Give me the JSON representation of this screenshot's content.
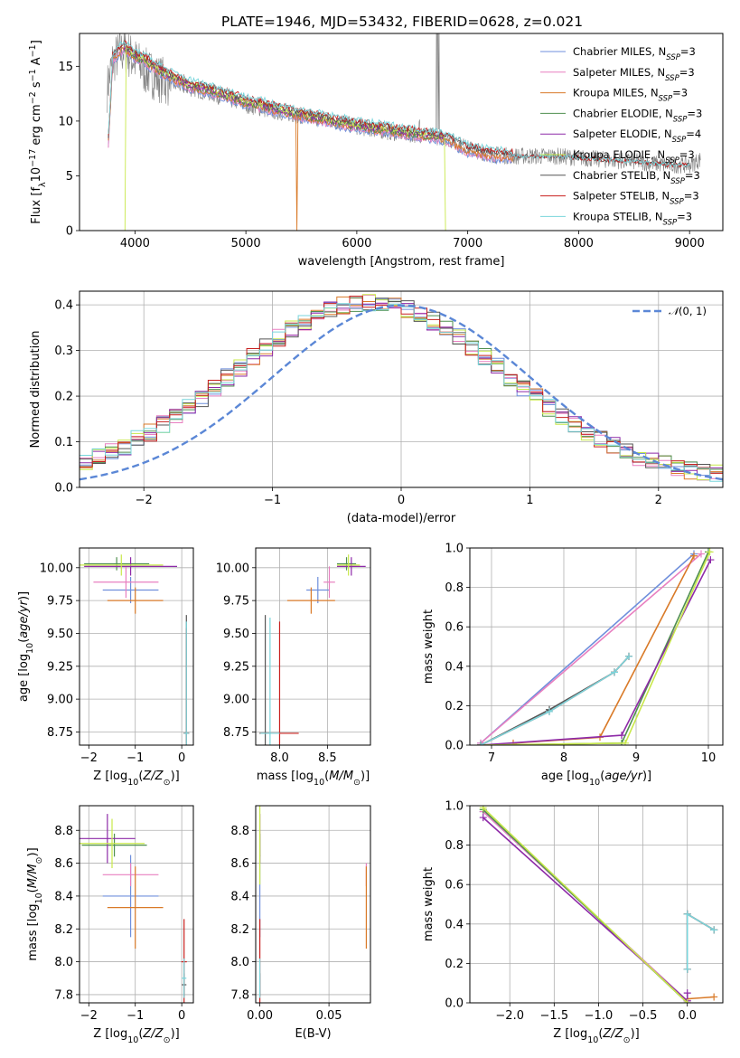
{
  "title": "PLATE=1946, MJD=53432, FIBERID=0628, z=0.021",
  "colors": {
    "chabrier_miles": "#6f8fdc",
    "salpeter_miles": "#e87fc0",
    "kroupa_miles": "#d97a28",
    "chabrier_elodie": "#4f8f4f",
    "salpeter_elodie": "#8e2aa8",
    "kroupa_elodie": "#c8e84a",
    "chabrier_stelib": "#555555",
    "salpeter_stelib": "#c8201f",
    "kroupa_stelib": "#79d6dc",
    "data": "#808080",
    "normal": "#5b87d6"
  },
  "legend": [
    {
      "key": "chabrier_miles",
      "text": "Chabrier MILES, N",
      "nssp": "3"
    },
    {
      "key": "salpeter_miles",
      "text": "Salpeter MILES, N",
      "nssp": "3"
    },
    {
      "key": "kroupa_miles",
      "text": "Kroupa MILES, N",
      "nssp": "3"
    },
    {
      "key": "chabrier_elodie",
      "text": "Chabrier ELODIE, N",
      "nssp": "3"
    },
    {
      "key": "salpeter_elodie",
      "text": "Salpeter ELODIE, N",
      "nssp": "4"
    },
    {
      "key": "kroupa_elodie",
      "text": "Kroupa ELODIE, N",
      "nssp": "3"
    },
    {
      "key": "chabrier_stelib",
      "text": "Chabrier STELIB, N",
      "nssp": "3"
    },
    {
      "key": "salpeter_stelib",
      "text": "Salpeter STELIB, N",
      "nssp": "3"
    },
    {
      "key": "kroupa_stelib",
      "text": "Kroupa STELIB, N",
      "nssp": "3"
    }
  ],
  "nssp_subscript": "SSP",
  "chart_data": [
    {
      "id": "spectrum",
      "type": "line",
      "xlabel": "wavelength [Angstrom, rest frame]",
      "ylabel": "Flux [f_λ 10^-17 erg cm^-2 s^-1 A^-1]",
      "xlim": [
        3500,
        9300
      ],
      "ylim": [
        0,
        18
      ],
      "xticks": [
        4000,
        5000,
        6000,
        7000,
        8000,
        9000
      ],
      "yticks": [
        0,
        5,
        10,
        15
      ],
      "data_trend": {
        "x": [
          3750,
          3800,
          3900,
          4000,
          4100,
          4300,
          4500,
          4700,
          5000,
          5200,
          5500,
          5800,
          6000,
          6300,
          6500,
          6800,
          7000,
          7200,
          7400,
          7800,
          8200,
          8500,
          8800,
          9000,
          9100
        ],
        "y": [
          13,
          15.5,
          16.5,
          15.5,
          14.5,
          13.5,
          13,
          12.5,
          11.5,
          11,
          10.5,
          10,
          9.5,
          9,
          8.8,
          8.5,
          7.5,
          7,
          6.8,
          6.8,
          6.5,
          6.3,
          6,
          6,
          6.5
        ]
      },
      "model_trend": {
        "x": [
          3760,
          3800,
          3900,
          4000,
          4100,
          4300,
          4500,
          4700,
          5000,
          5200,
          5500,
          5800,
          6000,
          6300,
          6500,
          6800,
          7000,
          7200,
          7400
        ],
        "y": [
          8.2,
          15.8,
          16.8,
          16,
          15.5,
          14.2,
          13.3,
          12.8,
          11.8,
          11.3,
          10.6,
          10.0,
          9.6,
          9.2,
          8.9,
          8.5,
          7.4,
          7.0,
          6.8
        ]
      },
      "data_extent": [
        3750,
        9100
      ],
      "model_extents": {
        "chabrier_miles": [
          3760,
          7420
        ],
        "salpeter_miles": [
          3760,
          7420
        ],
        "kroupa_miles": [
          3760,
          7420
        ],
        "chabrier_elodie": [
          3900,
          6800
        ],
        "salpeter_elodie": [
          3900,
          6800
        ],
        "kroupa_elodie": [
          3900,
          6800
        ],
        "chabrier_stelib": [
          3760,
          9000
        ],
        "salpeter_stelib": [
          3760,
          9000
        ],
        "kroupa_stelib": [
          3760,
          9000
        ]
      }
    },
    {
      "id": "residuals",
      "type": "line",
      "xlabel": "(data-model)/error",
      "ylabel": "Normed distribution",
      "xlim": [
        -2.5,
        2.5
      ],
      "ylim": [
        0,
        0.43
      ],
      "xticks": [
        -2,
        -1,
        0,
        1,
        2
      ],
      "yticks": [
        0.0,
        0.1,
        0.2,
        0.3,
        0.4
      ],
      "legend": "N(0,1)",
      "hist_bin_width": 0.1,
      "hist_shift": -0.25
    },
    {
      "id": "age_vs_Z",
      "type": "scatter",
      "xlabel": "Z [log10(Z/Z☉)]",
      "ylabel": "age [log10(age/yr)]",
      "xlim": [
        -2.2,
        0.25
      ],
      "ylim": [
        8.65,
        10.15
      ],
      "xticks": [
        -2,
        -1,
        0
      ],
      "yticks": [
        8.75,
        9.0,
        9.25,
        9.5,
        9.75,
        10.0
      ],
      "crosses": [
        {
          "key": "chabrier_miles",
          "x": -1.1,
          "y": 9.83,
          "xerr": 0.6,
          "yerr": 0.1
        },
        {
          "key": "salpeter_miles",
          "x": -1.2,
          "y": 9.89,
          "xerr": 0.7,
          "yerr": 0.12
        },
        {
          "key": "kroupa_miles",
          "x": -1.0,
          "y": 9.75,
          "xerr": 0.6,
          "yerr": 0.1
        },
        {
          "key": "chabrier_elodie",
          "x": -1.4,
          "y": 10.03,
          "xerr": 0.7,
          "yerr": 0.05
        },
        {
          "key": "salpeter_elodie",
          "x": -1.1,
          "y": 10.01,
          "xerr": 1.0,
          "yerr": 0.07
        },
        {
          "key": "kroupa_elodie",
          "x": -1.3,
          "y": 10.02,
          "xerr": 0.9,
          "yerr": 0.08
        },
        {
          "key": "chabrier_stelib",
          "x": 0.1,
          "y": 8.74,
          "xerr": 0.06,
          "yerr": 0.9
        },
        {
          "key": "salpeter_stelib",
          "x": 0.1,
          "y": 8.74,
          "xerr": 0.05,
          "yerr": 0.8
        },
        {
          "key": "kroupa_stelib",
          "x": 0.1,
          "y": 8.74,
          "xerr": 0.05,
          "yerr": 0.85
        }
      ]
    },
    {
      "id": "age_vs_mass",
      "type": "scatter",
      "xlabel": "mass [log10(M/M☉)]",
      "ylabel": "",
      "xlim": [
        7.75,
        8.95
      ],
      "ylim": [
        8.65,
        10.15
      ],
      "xticks": [
        8.0,
        8.5
      ],
      "yticks": [
        8.75,
        9.0,
        9.25,
        9.5,
        9.75,
        10.0
      ],
      "crosses": [
        {
          "key": "chabrier_miles",
          "x": 8.4,
          "y": 9.83,
          "xerr": 0.12,
          "yerr": 0.1
        },
        {
          "key": "salpeter_miles",
          "x": 8.52,
          "y": 9.89,
          "xerr": 0.06,
          "yerr": 0.12
        },
        {
          "key": "kroupa_miles",
          "x": 8.33,
          "y": 9.75,
          "xerr": 0.25,
          "yerr": 0.1
        },
        {
          "key": "chabrier_elodie",
          "x": 8.7,
          "y": 10.03,
          "xerr": 0.1,
          "yerr": 0.05
        },
        {
          "key": "salpeter_elodie",
          "x": 8.75,
          "y": 10.01,
          "xerr": 0.15,
          "yerr": 0.07
        },
        {
          "key": "kroupa_elodie",
          "x": 8.72,
          "y": 10.02,
          "xerr": 0.12,
          "yerr": 0.08
        },
        {
          "key": "chabrier_stelib",
          "x": 7.85,
          "y": 8.74,
          "xerr": 0.06,
          "yerr": 0.9
        },
        {
          "key": "salpeter_stelib",
          "x": 8.0,
          "y": 8.74,
          "xerr": 0.2,
          "yerr": 0.85
        },
        {
          "key": "kroupa_stelib",
          "x": 7.9,
          "y": 8.74,
          "xerr": 0.1,
          "yerr": 0.88
        }
      ]
    },
    {
      "id": "weight_vs_age",
      "type": "line",
      "xlabel": "age [log10(age/yr)]",
      "ylabel": "mass weight",
      "xlim": [
        6.7,
        10.2
      ],
      "ylim": [
        0,
        1.0
      ],
      "xticks": [
        7,
        8,
        9,
        10
      ],
      "yticks": [
        0.0,
        0.2,
        0.4,
        0.6,
        0.8,
        1.0
      ],
      "series": [
        {
          "key": "chabrier_miles",
          "x": [
            6.85,
            9.8
          ],
          "y": [
            0.01,
            0.97
          ]
        },
        {
          "key": "salpeter_miles",
          "x": [
            6.85,
            9.9
          ],
          "y": [
            0.01,
            0.97
          ]
        },
        {
          "key": "kroupa_miles",
          "x": [
            7.3,
            8.5,
            9.8
          ],
          "y": [
            0.01,
            0.04,
            0.96
          ]
        },
        {
          "key": "chabrier_elodie",
          "x": [
            6.85,
            8.8,
            10.0
          ],
          "y": [
            0.0,
            0.01,
            0.98
          ]
        },
        {
          "key": "salpeter_elodie",
          "x": [
            6.85,
            8.8,
            10.03
          ],
          "y": [
            0.0,
            0.05,
            0.94
          ]
        },
        {
          "key": "kroupa_elodie",
          "x": [
            6.85,
            8.85,
            10.02
          ],
          "y": [
            0.0,
            0.01,
            0.98
          ]
        },
        {
          "key": "chabrier_stelib",
          "x": [
            6.85,
            7.8,
            8.7,
            8.9
          ],
          "y": [
            0.0,
            0.18,
            0.37,
            0.45
          ]
        },
        {
          "key": "salpeter_stelib",
          "x": [
            6.85,
            7.8,
            8.7,
            8.9
          ],
          "y": [
            0.0,
            0.17,
            0.37,
            0.45
          ]
        },
        {
          "key": "kroupa_stelib",
          "x": [
            6.85,
            7.8,
            8.7,
            8.9
          ],
          "y": [
            0.0,
            0.17,
            0.37,
            0.45
          ]
        }
      ]
    },
    {
      "id": "mass_vs_Z",
      "type": "scatter",
      "xlabel": "Z [log10(Z/Z☉)]",
      "ylabel": "mass [log10(M/M☉)]",
      "xlim": [
        -2.2,
        0.25
      ],
      "ylim": [
        7.75,
        8.95
      ],
      "xticks": [
        -2,
        -1,
        0
      ],
      "yticks": [
        7.8,
        8.0,
        8.2,
        8.4,
        8.6,
        8.8
      ],
      "crosses": [
        {
          "key": "chabrier_miles",
          "x": -1.1,
          "y": 8.4,
          "xerr": 0.6,
          "yerr": 0.25
        },
        {
          "key": "salpeter_miles",
          "x": -1.1,
          "y": 8.53,
          "xerr": 0.6,
          "yerr": 0.07
        },
        {
          "key": "kroupa_miles",
          "x": -1.0,
          "y": 8.33,
          "xerr": 0.6,
          "yerr": 0.25
        },
        {
          "key": "chabrier_elodie",
          "x": -1.45,
          "y": 8.71,
          "xerr": 0.7,
          "yerr": 0.07
        },
        {
          "key": "salpeter_elodie",
          "x": -1.6,
          "y": 8.75,
          "xerr": 0.6,
          "yerr": 0.15
        },
        {
          "key": "kroupa_elodie",
          "x": -1.5,
          "y": 8.72,
          "xerr": 0.7,
          "yerr": 0.15
        },
        {
          "key": "chabrier_stelib",
          "x": 0.05,
          "y": 7.86,
          "xerr": 0.05,
          "yerr": 0.07
        },
        {
          "key": "salpeter_stelib",
          "x": 0.05,
          "y": 8.0,
          "xerr": 0.06,
          "yerr": 0.26
        },
        {
          "key": "kroupa_stelib",
          "x": 0.05,
          "y": 7.9,
          "xerr": 0.05,
          "yerr": 0.12
        }
      ]
    },
    {
      "id": "mass_vs_ebv",
      "type": "scatter",
      "xlabel": "E(B-V)",
      "ylabel": "",
      "xlim": [
        -0.003,
        0.08
      ],
      "ylim": [
        7.75,
        8.95
      ],
      "xticks": [
        0.0,
        0.05
      ],
      "yticks": [
        7.8,
        8.0,
        8.2,
        8.4,
        8.6,
        8.8
      ],
      "crosses": [
        {
          "key": "chabrier_miles",
          "x": 0.0,
          "y": 8.4,
          "xerr": 0,
          "yerr": 0.25
        },
        {
          "key": "salpeter_miles",
          "x": 0.077,
          "y": 8.53,
          "xerr": 0,
          "yerr": 0.07
        },
        {
          "key": "kroupa_miles",
          "x": 0.077,
          "y": 8.33,
          "xerr": 0,
          "yerr": 0.25
        },
        {
          "key": "chabrier_elodie",
          "x": 0.0,
          "y": 8.71,
          "xerr": 0,
          "yerr": 0.07
        },
        {
          "key": "salpeter_elodie",
          "x": 0.0,
          "y": 8.75,
          "xerr": 0,
          "yerr": 0.15
        },
        {
          "key": "kroupa_elodie",
          "x": 0.0,
          "y": 8.72,
          "xerr": 0,
          "yerr": 0.25
        },
        {
          "key": "chabrier_stelib",
          "x": 0.0,
          "y": 7.86,
          "xerr": 0,
          "yerr": 0.07
        },
        {
          "key": "salpeter_stelib",
          "x": 0.0,
          "y": 8.0,
          "xerr": 0,
          "yerr": 0.26
        },
        {
          "key": "kroupa_stelib",
          "x": 0.0,
          "y": 7.9,
          "xerr": 0,
          "yerr": 0.12
        }
      ]
    },
    {
      "id": "weight_vs_Z",
      "type": "line",
      "xlabel": "Z [log10(Z/Z☉)]",
      "ylabel": "mass weight",
      "xlim": [
        -2.45,
        0.4
      ],
      "ylim": [
        0,
        1.0
      ],
      "xticks": [
        -2.0,
        -1.5,
        -1.0,
        -0.5,
        0.0
      ],
      "yticks": [
        0.0,
        0.2,
        0.4,
        0.6,
        0.8,
        1.0
      ],
      "series": [
        {
          "key": "chabrier_miles",
          "x": [
            -2.3,
            0.0
          ],
          "y": [
            0.97,
            0.01
          ]
        },
        {
          "key": "salpeter_miles",
          "x": [
            -2.3,
            0.0
          ],
          "y": [
            0.97,
            0.01
          ]
        },
        {
          "key": "kroupa_miles",
          "x": [
            0.0,
            0.3
          ],
          "y": [
            0.02,
            0.03
          ]
        },
        {
          "key": "chabrier_elodie",
          "x": [
            -2.3,
            0.0
          ],
          "y": [
            0.98,
            0.0
          ]
        },
        {
          "key": "salpeter_elodie",
          "x": [
            -2.3,
            0.0,
            0.0
          ],
          "y": [
            0.94,
            0.01,
            0.05
          ]
        },
        {
          "key": "kroupa_elodie",
          "x": [
            -2.3,
            0.0
          ],
          "y": [
            0.99,
            0.0
          ]
        },
        {
          "key": "chabrier_stelib",
          "x": [
            0.0,
            0.0,
            0.3
          ],
          "y": [
            0.17,
            0.45,
            0.37
          ]
        },
        {
          "key": "salpeter_stelib",
          "x": [
            0.0,
            0.0,
            0.3
          ],
          "y": [
            0.17,
            0.45,
            0.37
          ]
        },
        {
          "key": "kroupa_stelib",
          "x": [
            0.0,
            0.0,
            0.3
          ],
          "y": [
            0.17,
            0.45,
            0.37
          ]
        }
      ]
    }
  ]
}
